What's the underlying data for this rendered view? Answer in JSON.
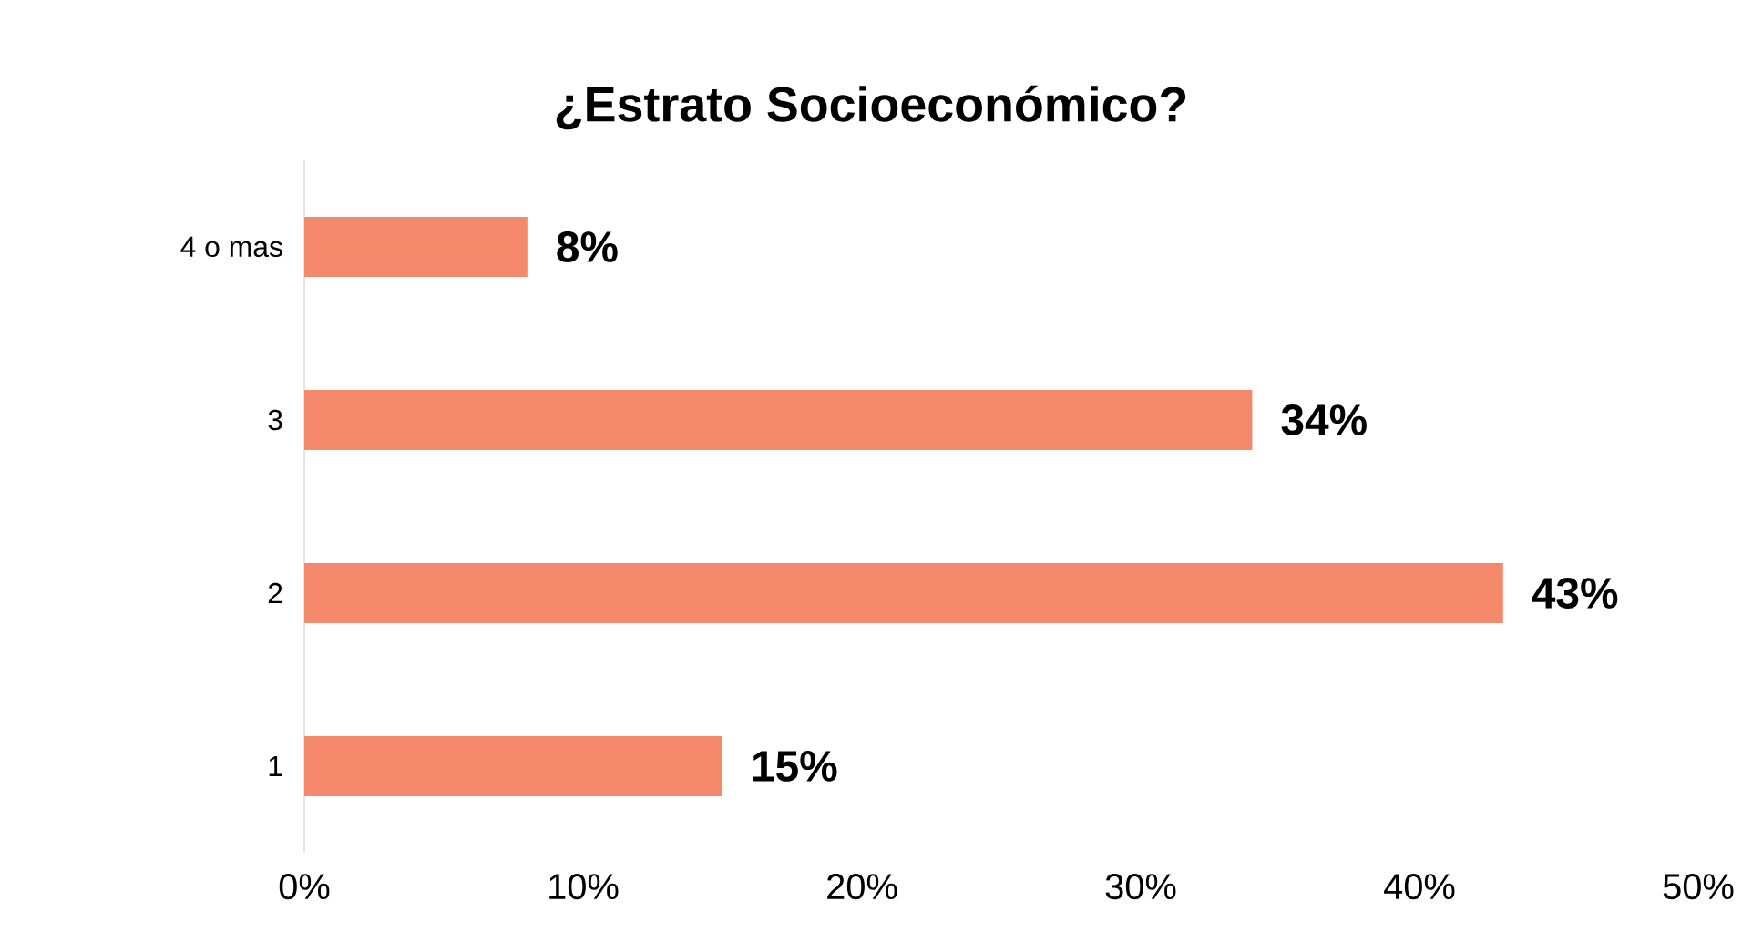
{
  "chart_data": {
    "type": "bar",
    "orientation": "horizontal",
    "title": "¿Estrato Socioeconómico?",
    "categories": [
      "4 o mas",
      "3",
      "2",
      "1"
    ],
    "values": [
      8,
      34,
      43,
      15
    ],
    "value_labels": [
      "8%",
      "34%",
      "43%",
      "15%"
    ],
    "color": "#f4896b",
    "xlim": [
      0,
      50
    ],
    "xticks": [
      {
        "value": 0,
        "label": "0%"
      },
      {
        "value": 10,
        "label": "10%"
      },
      {
        "value": 20,
        "label": "20%"
      },
      {
        "value": 30,
        "label": "30%"
      },
      {
        "value": 40,
        "label": "40%"
      },
      {
        "value": 50,
        "label": "50%"
      }
    ]
  }
}
